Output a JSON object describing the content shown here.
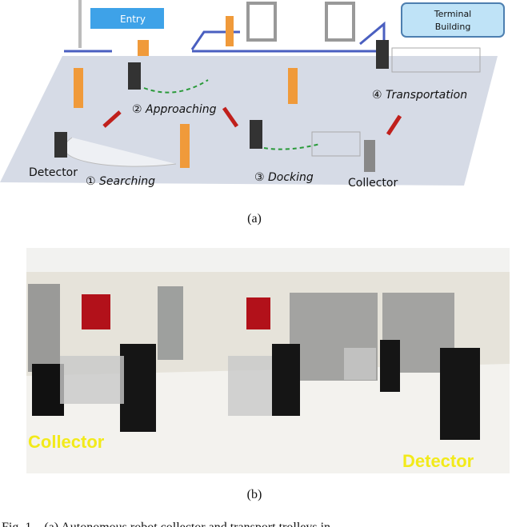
{
  "figure_a": {
    "entry": "Entry",
    "terminal": [
      "Terminal",
      "Building"
    ],
    "detector": "Detector",
    "collector": "Collector",
    "steps": [
      "① Searching",
      "② Approaching",
      "③ Docking",
      "④ Transportation"
    ]
  },
  "label_a": "(a)",
  "figure_b": {
    "collector": "Collector",
    "detector": "Detector"
  },
  "label_b": "(b)",
  "caption": "Fig. 1.   (a) Autonomous robot collector and transport trolleys in"
}
